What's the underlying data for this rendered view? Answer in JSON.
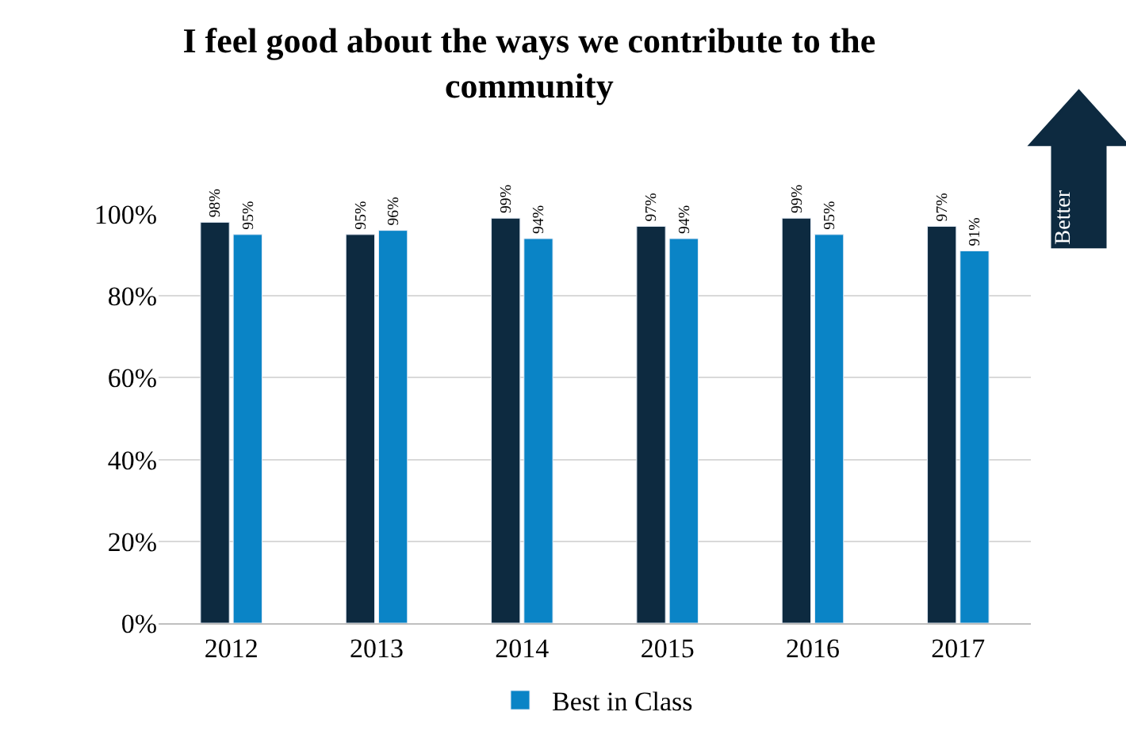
{
  "chart_data": {
    "type": "bar",
    "title": "I feel good about the ways we contribute to the community",
    "categories": [
      "2012",
      "2013",
      "2014",
      "2015",
      "2016",
      "2017"
    ],
    "series": [
      {
        "color": "#0d2a40",
        "values": [
          98,
          95,
          99,
          97,
          99,
          97
        ]
      },
      {
        "name": "Best in Class",
        "color": "#0a84c6",
        "values": [
          95,
          96,
          94,
          94,
          95,
          91
        ]
      }
    ],
    "ylim": [
      0,
      100
    ],
    "yticks": [
      {
        "value": 0,
        "label": "0%"
      },
      {
        "value": 20,
        "label": "20%"
      },
      {
        "value": 40,
        "label": "40%"
      },
      {
        "value": 60,
        "label": "60%"
      },
      {
        "value": 80,
        "label": "80%"
      },
      {
        "value": 100,
        "label": "100%"
      }
    ],
    "value_labels": [
      [
        "98%",
        "95%",
        "99%",
        "97%",
        "99%",
        "97%"
      ],
      [
        "95%",
        "96%",
        "94%",
        "94%",
        "95%",
        "91%"
      ]
    ],
    "annotations": [
      "Better"
    ],
    "grid": "y",
    "legend": "bottom"
  }
}
